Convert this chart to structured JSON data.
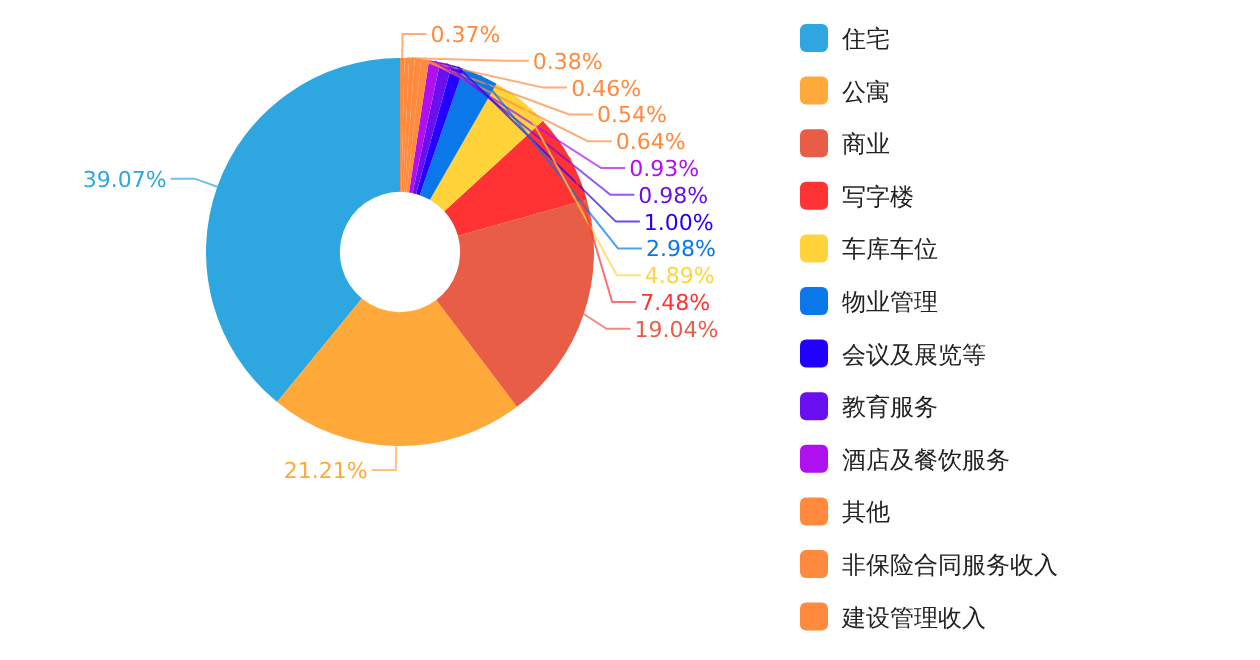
{
  "chart_data": {
    "type": "donut",
    "categories": [
      "住宅",
      "公寓",
      "商业",
      "写字楼",
      "车库车位",
      "物业管理",
      "会议及展览等",
      "教育服务",
      "酒店及餐饮服务",
      "其他",
      "非保险合同服务收入",
      "建设管理收入",
      null,
      null
    ],
    "values": [
      39.07,
      21.21,
      19.04,
      7.48,
      4.89,
      2.98,
      1.0,
      0.98,
      0.93,
      0.64,
      0.54,
      0.46,
      0.38,
      0.37
    ],
    "value_labels": [
      "39.07%",
      "21.21%",
      "19.04%",
      "7.48%",
      "4.89%",
      "2.98%",
      "1.00%",
      "0.98%",
      "0.93%",
      "0.64%",
      "0.54%",
      "0.46%",
      "0.38%",
      "0.37%"
    ],
    "colors": [
      "#2ea7e0",
      "#ffa93a",
      "#e85d45",
      "#ff3333",
      "#ffd43b",
      "#0a78e8",
      "#2200ff",
      "#6a0ff0",
      "#b00ff0",
      "#ff8a3d",
      "#ff8a3d",
      "#ff8a3d",
      "#ff8a3d",
      "#ff8a3d"
    ],
    "legend": "right"
  }
}
